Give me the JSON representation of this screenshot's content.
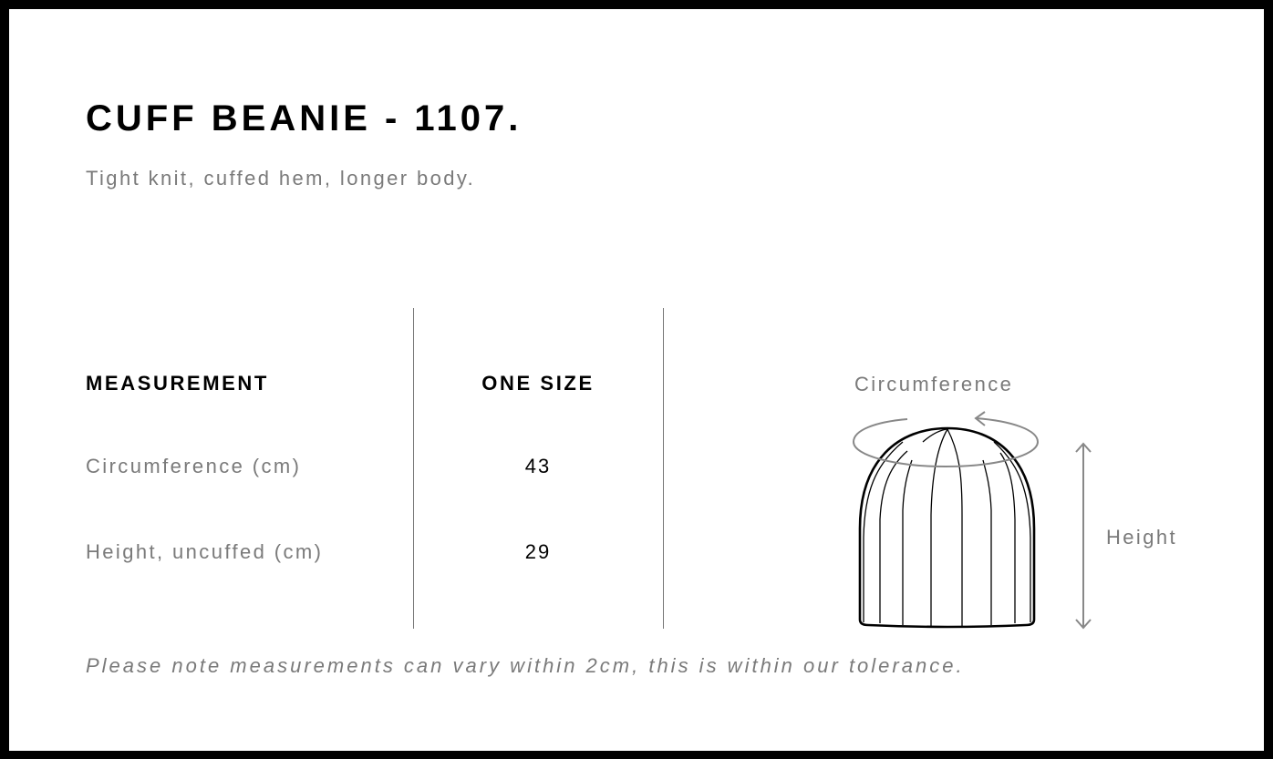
{
  "header": {
    "title": "CUFF BEANIE - 1107.",
    "subtitle": "Tight knit, cuffed hem, longer body."
  },
  "table": {
    "headers": [
      "MEASUREMENT",
      "ONE SIZE"
    ],
    "rows": [
      {
        "label": "Circumference (cm)",
        "value": "43"
      },
      {
        "label": "Height, uncuffed (cm)",
        "value": "29"
      }
    ]
  },
  "diagram": {
    "circumference_label": "Circumference",
    "height_label": "Height",
    "icons": [
      "beanie-illustration",
      "circumference-arrow-icon",
      "height-arrow-icon"
    ]
  },
  "note": "Please note measurements can vary within 2cm, this is within our tolerance."
}
